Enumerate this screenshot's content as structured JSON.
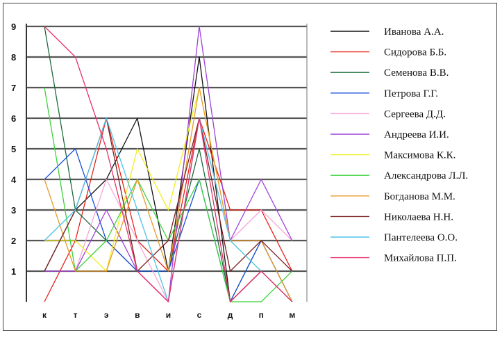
{
  "chart_data": {
    "type": "line",
    "categories": [
      "к",
      "т",
      "э",
      "в",
      "и",
      "с",
      "д",
      "п",
      "м"
    ],
    "ylim": [
      0,
      9
    ],
    "yticks": [
      1,
      2,
      3,
      4,
      5,
      6,
      7,
      8,
      9
    ],
    "grid": true,
    "legend_position": "right",
    "series": [
      {
        "name": "Иванова А.А.",
        "color": "#111111",
        "values": [
          1,
          3,
          4,
          6,
          1,
          8,
          0,
          1,
          0
        ]
      },
      {
        "name": "Сидорова Б.Б.",
        "color": "#e8211a",
        "values": [
          0,
          2,
          6,
          2,
          1,
          6,
          3,
          3,
          1
        ]
      },
      {
        "name": "Семенова В.В.",
        "color": "#1e6b3c",
        "values": [
          9,
          3,
          2,
          1,
          1,
          5,
          0,
          2,
          0
        ]
      },
      {
        "name": "Петрова Г.Г.",
        "color": "#1a4fd6",
        "values": [
          4,
          5,
          2,
          1,
          1,
          4,
          0,
          2,
          0
        ]
      },
      {
        "name": "Сергеева Д.Д.",
        "color": "#f7a8d8",
        "values": [
          1,
          1,
          4,
          2,
          0,
          6,
          2,
          3,
          2
        ]
      },
      {
        "name": "Андреева И.И.",
        "color": "#a040d8",
        "values": [
          1,
          1,
          3,
          1,
          0,
          9,
          2,
          4,
          2
        ]
      },
      {
        "name": "Максимова К.К.",
        "color": "#f2ee1c",
        "values": [
          2,
          2,
          1,
          5,
          3,
          7,
          2,
          1,
          0
        ]
      },
      {
        "name": "Александрова Л.Л.",
        "color": "#3ad23a",
        "values": [
          7,
          1,
          2,
          4,
          2,
          4,
          0,
          0,
          1
        ]
      },
      {
        "name": "Богданова М.М.",
        "color": "#e89a2a",
        "values": [
          4,
          1,
          1,
          4,
          1,
          7,
          2,
          2,
          0
        ]
      },
      {
        "name": "Николаева Н.Н.",
        "color": "#7a2020",
        "values": [
          1,
          3,
          6,
          1,
          2,
          6,
          1,
          2,
          1
        ]
      },
      {
        "name": "Пантелеева О.О.",
        "color": "#4ec3ea",
        "values": [
          2,
          3,
          6,
          3,
          0,
          6,
          2,
          1,
          0
        ]
      },
      {
        "name": "Михайлова П.П.",
        "color": "#e8306a",
        "values": [
          9,
          8,
          5,
          1,
          0,
          6,
          0,
          1,
          0
        ]
      }
    ]
  }
}
